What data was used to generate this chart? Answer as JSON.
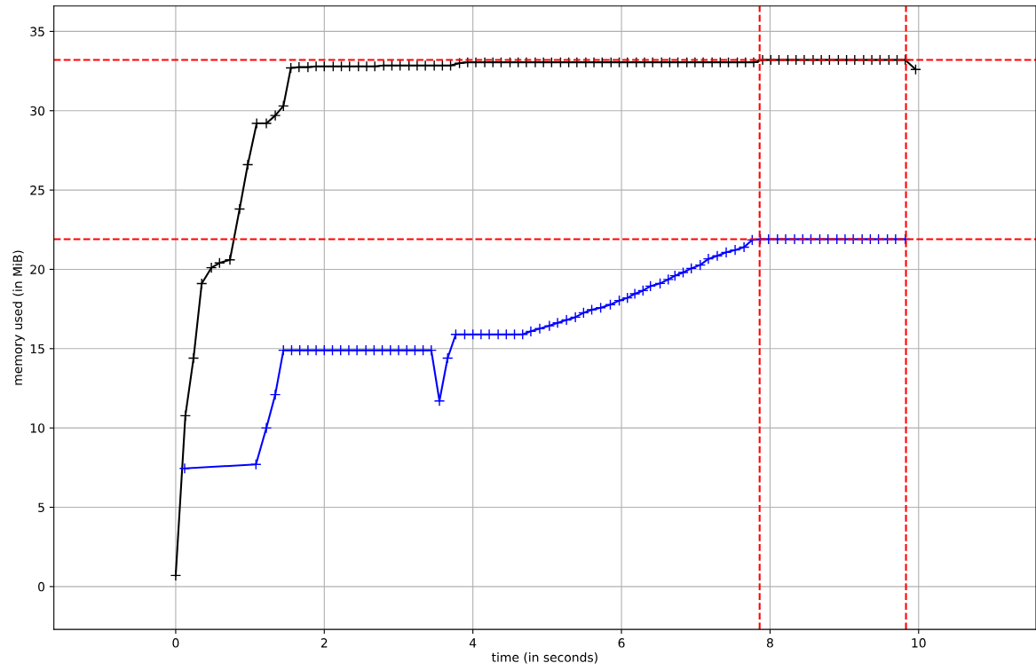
{
  "chart_data": {
    "type": "line",
    "xlabel": "time (in seconds)",
    "ylabel": "memory used (in MiB)",
    "xlim": [
      -1.64,
      11.58
    ],
    "ylim": [
      -2.7,
      36.6
    ],
    "xticks": [
      0,
      2,
      4,
      6,
      8,
      10
    ],
    "yticks": [
      0,
      5,
      10,
      15,
      20,
      25,
      30,
      35
    ],
    "grid": true,
    "marker": "cross",
    "line_style": "solid",
    "series": [
      {
        "color": "#000000",
        "x": [
          0,
          0.13,
          0.24,
          0.35,
          0.48,
          0.59,
          0.73,
          0.86,
          0.97,
          1.09,
          1.22,
          1.34,
          1.45,
          1.55,
          1.66,
          1.78,
          1.89,
          2.0,
          2.12,
          2.23,
          2.34,
          2.46,
          2.57,
          2.68,
          2.8,
          2.91,
          3.02,
          3.14,
          3.25,
          3.36,
          3.48,
          3.59,
          3.7,
          3.82,
          3.93,
          4.04,
          4.16,
          4.27,
          4.38,
          4.5,
          4.61,
          4.72,
          4.84,
          4.95,
          5.06,
          5.18,
          5.29,
          5.4,
          5.52,
          5.63,
          5.74,
          5.86,
          5.97,
          6.08,
          6.2,
          6.31,
          6.42,
          6.54,
          6.65,
          6.76,
          6.88,
          6.99,
          7.1,
          7.22,
          7.33,
          7.44,
          7.56,
          7.67,
          7.78,
          7.9,
          8.01,
          8.12,
          8.24,
          8.35,
          8.46,
          8.58,
          8.69,
          8.8,
          8.92,
          9.03,
          9.14,
          9.26,
          9.37,
          9.48,
          9.6,
          9.71,
          9.82,
          9.96
        ],
        "values": [
          0.7,
          10.77,
          14.4,
          19.1,
          20.1,
          20.4,
          20.6,
          23.8,
          26.6,
          29.2,
          29.2,
          29.7,
          30.3,
          32.7,
          32.75,
          32.75,
          32.8,
          32.8,
          32.8,
          32.8,
          32.8,
          32.8,
          32.8,
          32.8,
          32.85,
          32.85,
          32.85,
          32.85,
          32.85,
          32.85,
          32.85,
          32.85,
          32.85,
          33.0,
          33.05,
          33.05,
          33.05,
          33.05,
          33.05,
          33.05,
          33.05,
          33.05,
          33.05,
          33.05,
          33.05,
          33.05,
          33.05,
          33.05,
          33.05,
          33.05,
          33.05,
          33.05,
          33.05,
          33.05,
          33.05,
          33.05,
          33.05,
          33.05,
          33.05,
          33.05,
          33.05,
          33.05,
          33.05,
          33.05,
          33.05,
          33.05,
          33.05,
          33.05,
          33.05,
          33.2,
          33.2,
          33.2,
          33.2,
          33.2,
          33.2,
          33.2,
          33.2,
          33.2,
          33.2,
          33.2,
          33.2,
          33.2,
          33.2,
          33.2,
          33.2,
          33.2,
          33.2,
          32.6
        ]
      },
      {
        "color": "#0000ff",
        "x": [
          0.12,
          1.08,
          1.22,
          1.34,
          1.45,
          1.56,
          1.67,
          1.78,
          1.89,
          2.0,
          2.11,
          2.22,
          2.33,
          2.44,
          2.56,
          2.67,
          2.78,
          2.89,
          3.0,
          3.11,
          3.22,
          3.33,
          3.44,
          3.55,
          3.66,
          3.77,
          3.89,
          4.0,
          4.11,
          4.22,
          4.34,
          4.45,
          4.56,
          4.67,
          4.78,
          4.9,
          5.03,
          5.14,
          5.26,
          5.38,
          5.49,
          5.6,
          5.72,
          5.85,
          5.97,
          6.08,
          6.18,
          6.29,
          6.39,
          6.52,
          6.63,
          6.72,
          6.83,
          6.94,
          7.06,
          7.17,
          7.29,
          7.41,
          7.53,
          7.65,
          7.76,
          7.87,
          7.98,
          8.1,
          8.21,
          8.33,
          8.44,
          8.55,
          8.67,
          8.78,
          8.9,
          9.01,
          9.12,
          9.24,
          9.35,
          9.46,
          9.58,
          9.69,
          9.82
        ],
        "values": [
          7.45,
          7.7,
          10.0,
          12.1,
          14.9,
          14.9,
          14.9,
          14.9,
          14.9,
          14.9,
          14.9,
          14.9,
          14.9,
          14.9,
          14.9,
          14.9,
          14.9,
          14.9,
          14.9,
          14.9,
          14.9,
          14.9,
          14.9,
          11.7,
          14.4,
          15.9,
          15.9,
          15.9,
          15.9,
          15.9,
          15.9,
          15.9,
          15.9,
          15.9,
          16.09,
          16.26,
          16.44,
          16.63,
          16.81,
          16.98,
          17.26,
          17.45,
          17.58,
          17.77,
          18.03,
          18.2,
          18.46,
          18.66,
          18.94,
          19.11,
          19.36,
          19.6,
          19.8,
          20.06,
          20.27,
          20.66,
          20.85,
          21.07,
          21.22,
          21.4,
          21.85,
          21.9,
          21.9,
          21.9,
          21.9,
          21.9,
          21.9,
          21.9,
          21.9,
          21.9,
          21.9,
          21.9,
          21.9,
          21.9,
          21.9,
          21.9,
          21.9,
          21.9,
          21.9
        ]
      }
    ],
    "ref_lines": [
      {
        "axis": "y",
        "value": 33.2,
        "color": "#ff0000",
        "line_style": "dashed"
      },
      {
        "axis": "y",
        "value": 21.9,
        "color": "#ff0000",
        "line_style": "dashed"
      },
      {
        "axis": "x",
        "value": 7.86,
        "color": "#ff0000",
        "line_style": "dashed"
      },
      {
        "axis": "x",
        "value": 9.83,
        "color": "#ff0000",
        "line_style": "dashed"
      }
    ]
  }
}
